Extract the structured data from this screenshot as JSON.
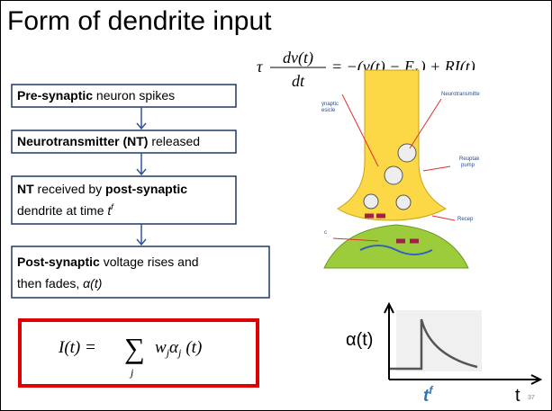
{
  "title": "Form of dendrite input",
  "equation": {
    "tau": "τ",
    "numerator": "dv(t)",
    "denominator": "dt",
    "rhs_a": "= −(v(t) − E",
    "rhs_sub": "L",
    "rhs_b": ") + RI(t)"
  },
  "boxes": [
    [
      "Pre-synaptic",
      " neuron spikes"
    ],
    [
      "Neurotransmitter (NT)",
      " released"
    ],
    [
      "NT",
      " received by ",
      "post-synaptic",
      "dendrite at time ",
      "t",
      "f"
    ],
    [
      "Post-synaptic",
      " voltage rises and",
      "then fades, ",
      "α(t)"
    ]
  ],
  "formula": {
    "lhs": "I(t) =",
    "sum": "∑",
    "index": "j",
    "w": "w",
    "w_sub": "j",
    "alpha": "α",
    "alpha_sub": "j",
    "arg": "(t)"
  },
  "figure_labels": {
    "vesicle_a": "ynaptic",
    "vesicle_b": "esicle",
    "neurotransmitter": "Neurotransmitte",
    "reuptake_a": "Reuptak",
    "reuptake_b": "pump",
    "left": "c",
    "receptor": "Recep"
  },
  "graph": {
    "y_label": "α(t)",
    "t_f": "t",
    "t_f_sup": "f",
    "x_label": "t"
  },
  "page_number": "37"
}
